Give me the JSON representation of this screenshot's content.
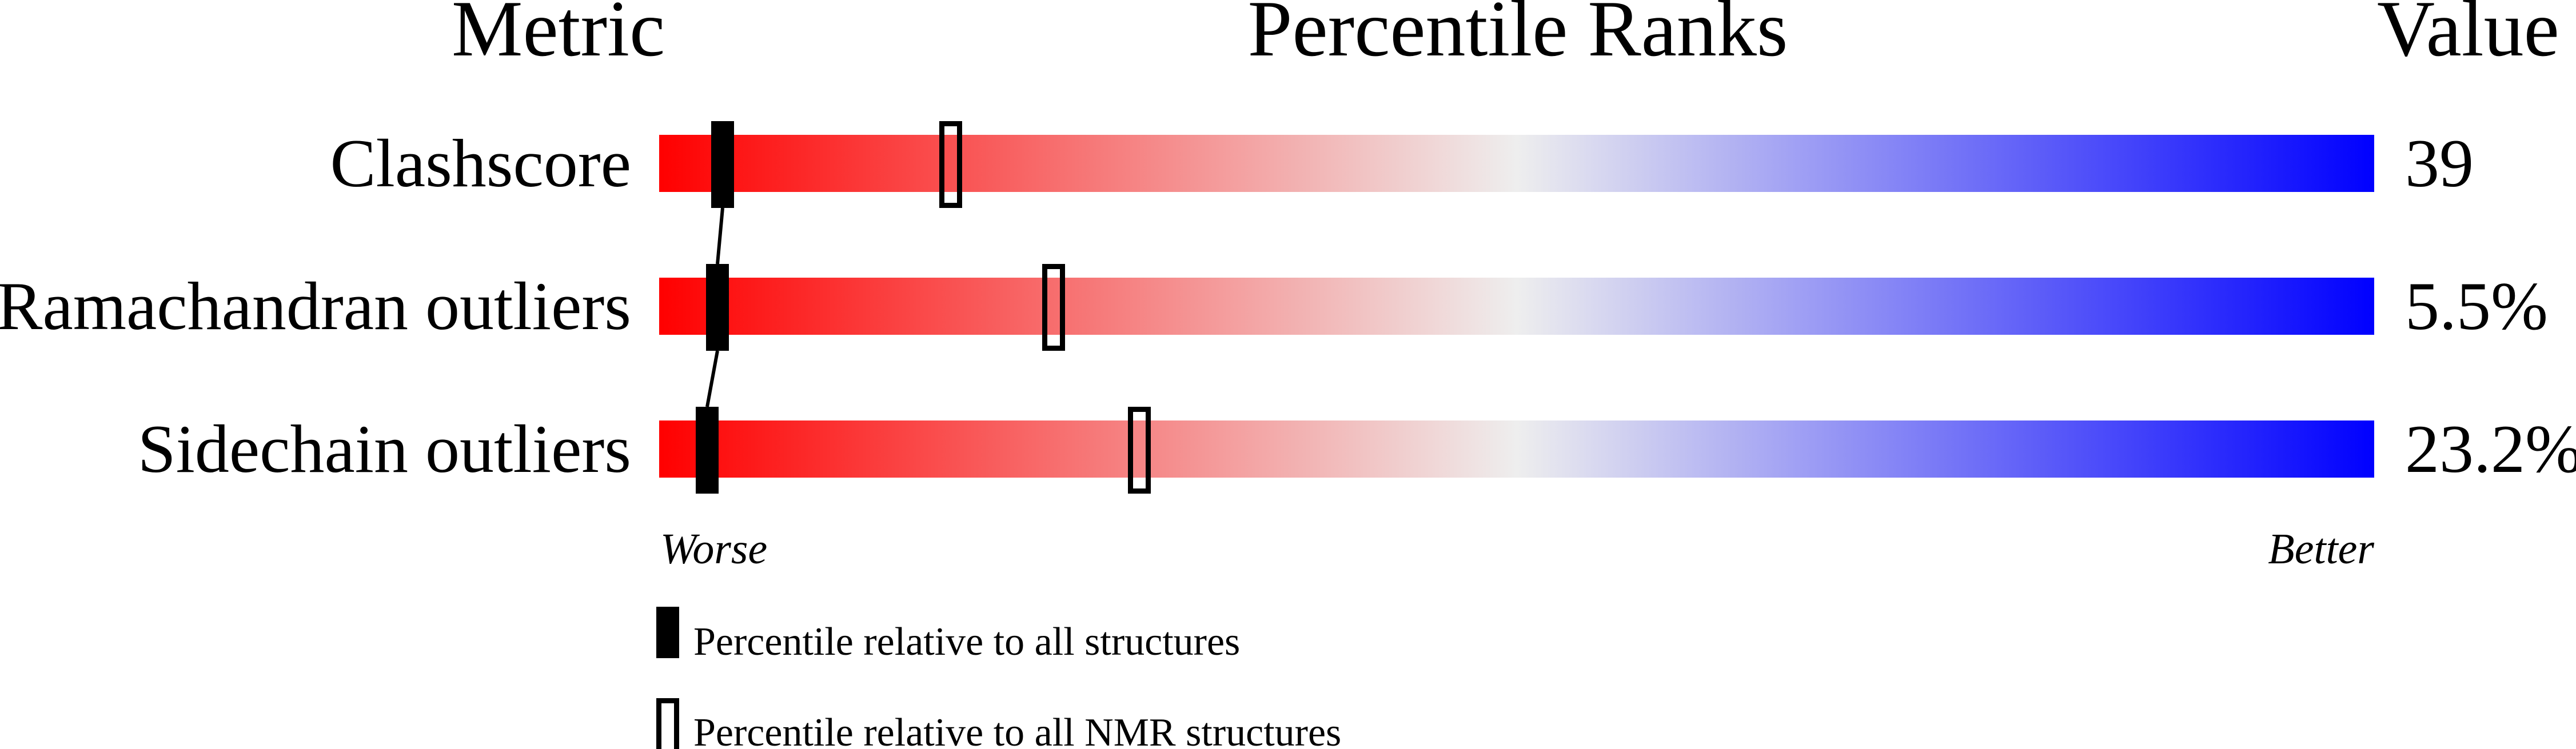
{
  "chart_data": {
    "type": "percentile-slider",
    "headers": {
      "metric": "Metric",
      "ranks": "Percentile Ranks",
      "value": "Value"
    },
    "xlim": [
      0,
      100
    ],
    "axis_labels": {
      "left": "Worse",
      "right": "Better"
    },
    "gradient_colors": [
      "#ff0000",
      "#eeeeee",
      "#0000ff"
    ],
    "rows": [
      {
        "metric": "Clashscore",
        "value": "39",
        "percentile_all": 3.7,
        "percentile_nmr": 17
      },
      {
        "metric": "Ramachandran outliers",
        "value": "5.5%",
        "percentile_all": 3.4,
        "percentile_nmr": 23
      },
      {
        "metric": "Sidechain outliers",
        "value": "23.2%",
        "percentile_all": 2.8,
        "percentile_nmr": 28
      }
    ],
    "legend": [
      {
        "marker": "filled",
        "label": "Percentile relative to all structures"
      },
      {
        "marker": "open",
        "label": "Percentile relative to all NMR structures"
      }
    ]
  }
}
